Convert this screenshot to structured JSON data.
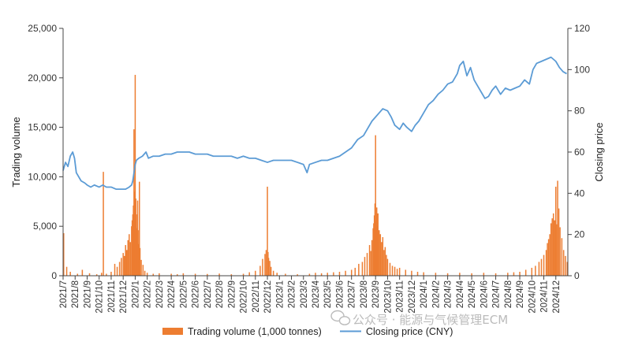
{
  "chart_data": {
    "type": "bar+line",
    "left_axis": {
      "title": "Trading volume",
      "ylim": [
        0,
        25000
      ],
      "ticks": [
        0,
        5000,
        10000,
        15000,
        20000,
        25000
      ],
      "tick_labels": [
        "0",
        "5,000",
        "10,000",
        "15,000",
        "20,000",
        "25,000"
      ]
    },
    "right_axis": {
      "title": "Closing price",
      "ylim": [
        0,
        120
      ],
      "ticks": [
        0,
        20,
        40,
        60,
        80,
        100,
        120
      ],
      "tick_labels": [
        "0",
        "20",
        "40",
        "60",
        "80",
        "100",
        "120"
      ]
    },
    "x_tick_labels": [
      "2021/7",
      "2021/8",
      "2021/9",
      "2021/10",
      "2021/11",
      "2021/12",
      "2022/1",
      "2022/2",
      "2022/3",
      "2022/4",
      "2022/5",
      "2022/6",
      "2022/7",
      "2022/8",
      "2022/9",
      "2022/10",
      "2022/11",
      "2022/12",
      "2023/1",
      "2023/2",
      "2023/3",
      "2023/4",
      "2023/5",
      "2023/6",
      "2023/7",
      "2023/8",
      "2023/9",
      "2023/10",
      "2023/11",
      "2023/12",
      "2024/1",
      "2024/2",
      "2024/3",
      "2024/4",
      "2024/5",
      "2024/6",
      "2024/7",
      "2024/8",
      "2024/9",
      "2024/10",
      "2024/11",
      "2024/12"
    ],
    "month_index_range": [
      0,
      42
    ],
    "series": [
      {
        "name": "Trading volume (1,000 tonnes)",
        "kind": "bar",
        "axis": "left",
        "color": "#ed7d31",
        "points": [
          [
            0.05,
            4300
          ],
          [
            0.3,
            900
          ],
          [
            0.6,
            400
          ],
          [
            1.2,
            200
          ],
          [
            1.6,
            600
          ],
          [
            2.2,
            250
          ],
          [
            2.8,
            150
          ],
          [
            3.2,
            300
          ],
          [
            3.35,
            10500
          ],
          [
            3.6,
            200
          ],
          [
            4.0,
            400
          ],
          [
            4.3,
            1200
          ],
          [
            4.5,
            900
          ],
          [
            4.7,
            1400
          ],
          [
            4.85,
            1800
          ],
          [
            5.0,
            2300
          ],
          [
            5.1,
            2000
          ],
          [
            5.2,
            3100
          ],
          [
            5.3,
            2600
          ],
          [
            5.4,
            3600
          ],
          [
            5.5,
            4200
          ],
          [
            5.6,
            3400
          ],
          [
            5.7,
            5000
          ],
          [
            5.75,
            5600
          ],
          [
            5.8,
            6200
          ],
          [
            5.85,
            7100
          ],
          [
            5.9,
            14800
          ],
          [
            5.95,
            8500
          ],
          [
            6.0,
            20300
          ],
          [
            6.05,
            7800
          ],
          [
            6.1,
            6200
          ],
          [
            6.15,
            4800
          ],
          [
            6.2,
            7600
          ],
          [
            6.25,
            3200
          ],
          [
            6.3,
            4600
          ],
          [
            6.35,
            9500
          ],
          [
            6.4,
            2800
          ],
          [
            6.5,
            1600
          ],
          [
            6.65,
            1100
          ],
          [
            6.8,
            500
          ],
          [
            7.0,
            300
          ],
          [
            7.5,
            200
          ],
          [
            8.0,
            250
          ],
          [
            9.0,
            200
          ],
          [
            9.5,
            150
          ],
          [
            10.0,
            250
          ],
          [
            11.0,
            200
          ],
          [
            12.0,
            180
          ],
          [
            13.0,
            220
          ],
          [
            14.0,
            150
          ],
          [
            15.0,
            200
          ],
          [
            15.5,
            350
          ],
          [
            16.0,
            500
          ],
          [
            16.4,
            1000
          ],
          [
            16.6,
            1700
          ],
          [
            16.8,
            2200
          ],
          [
            16.9,
            2600
          ],
          [
            17.0,
            9000
          ],
          [
            17.05,
            2400
          ],
          [
            17.1,
            1800
          ],
          [
            17.2,
            1500
          ],
          [
            17.3,
            900
          ],
          [
            17.5,
            500
          ],
          [
            17.8,
            300
          ],
          [
            18.5,
            200
          ],
          [
            19.5,
            150
          ],
          [
            20.5,
            200
          ],
          [
            21.0,
            300
          ],
          [
            21.5,
            250
          ],
          [
            22.0,
            300
          ],
          [
            22.5,
            350
          ],
          [
            23.0,
            400
          ],
          [
            23.5,
            500
          ],
          [
            24.0,
            600
          ],
          [
            24.3,
            800
          ],
          [
            24.6,
            1200
          ],
          [
            24.9,
            1400
          ],
          [
            25.1,
            1900
          ],
          [
            25.3,
            2300
          ],
          [
            25.5,
            3100
          ],
          [
            25.6,
            2500
          ],
          [
            25.7,
            3600
          ],
          [
            25.8,
            4800
          ],
          [
            25.85,
            5300
          ],
          [
            25.9,
            6100
          ],
          [
            25.95,
            7300
          ],
          [
            26.0,
            14200
          ],
          [
            26.05,
            5600
          ],
          [
            26.1,
            6900
          ],
          [
            26.15,
            5000
          ],
          [
            26.2,
            6300
          ],
          [
            26.3,
            4600
          ],
          [
            26.4,
            4200
          ],
          [
            26.5,
            3400
          ],
          [
            26.6,
            3900
          ],
          [
            26.7,
            2600
          ],
          [
            26.8,
            2900
          ],
          [
            26.9,
            2100
          ],
          [
            27.0,
            1700
          ],
          [
            27.2,
            1300
          ],
          [
            27.4,
            1000
          ],
          [
            27.6,
            900
          ],
          [
            27.8,
            700
          ],
          [
            28.0,
            800
          ],
          [
            28.5,
            600
          ],
          [
            29.0,
            500
          ],
          [
            29.5,
            400
          ],
          [
            30.0,
            350
          ],
          [
            31.0,
            300
          ],
          [
            32.0,
            250
          ],
          [
            33.0,
            300
          ],
          [
            34.0,
            250
          ],
          [
            35.0,
            300
          ],
          [
            36.0,
            250
          ],
          [
            37.0,
            300
          ],
          [
            37.5,
            350
          ],
          [
            38.0,
            400
          ],
          [
            38.5,
            600
          ],
          [
            39.0,
            800
          ],
          [
            39.3,
            1000
          ],
          [
            39.6,
            1400
          ],
          [
            39.8,
            1700
          ],
          [
            40.0,
            2100
          ],
          [
            40.2,
            2600
          ],
          [
            40.3,
            3300
          ],
          [
            40.4,
            3700
          ],
          [
            40.5,
            4200
          ],
          [
            40.6,
            5300
          ],
          [
            40.7,
            5800
          ],
          [
            40.8,
            6300
          ],
          [
            40.9,
            5600
          ],
          [
            41.0,
            9000
          ],
          [
            41.1,
            5200
          ],
          [
            41.15,
            9600
          ],
          [
            41.25,
            6800
          ],
          [
            41.35,
            4900
          ],
          [
            41.5,
            3800
          ],
          [
            41.65,
            2600
          ],
          [
            41.8,
            2000
          ],
          [
            41.95,
            1400
          ]
        ]
      },
      {
        "name": "Closing price (CNY)",
        "kind": "line",
        "axis": "right",
        "color": "#5b9bd5",
        "points": [
          [
            0.0,
            51
          ],
          [
            0.2,
            55
          ],
          [
            0.4,
            53
          ],
          [
            0.6,
            58
          ],
          [
            0.8,
            60
          ],
          [
            0.95,
            57
          ],
          [
            1.1,
            50
          ],
          [
            1.3,
            48
          ],
          [
            1.5,
            46
          ],
          [
            1.8,
            45
          ],
          [
            2.0,
            44
          ],
          [
            2.3,
            43
          ],
          [
            2.6,
            44
          ],
          [
            3.0,
            43
          ],
          [
            3.3,
            44
          ],
          [
            3.6,
            43
          ],
          [
            4.0,
            43
          ],
          [
            4.4,
            42
          ],
          [
            4.8,
            42
          ],
          [
            5.2,
            42
          ],
          [
            5.5,
            43
          ],
          [
            5.7,
            44
          ],
          [
            5.8,
            46
          ],
          [
            5.9,
            50
          ],
          [
            6.0,
            54
          ],
          [
            6.1,
            56
          ],
          [
            6.3,
            57
          ],
          [
            6.6,
            58
          ],
          [
            6.9,
            60
          ],
          [
            7.1,
            57
          ],
          [
            7.5,
            58
          ],
          [
            8.0,
            58
          ],
          [
            8.5,
            59
          ],
          [
            9.0,
            59
          ],
          [
            9.5,
            60
          ],
          [
            10.0,
            60
          ],
          [
            10.5,
            60
          ],
          [
            11.0,
            59
          ],
          [
            11.5,
            59
          ],
          [
            12.0,
            59
          ],
          [
            12.5,
            58
          ],
          [
            13.0,
            58
          ],
          [
            13.5,
            58
          ],
          [
            14.0,
            58
          ],
          [
            14.5,
            57
          ],
          [
            15.0,
            58
          ],
          [
            15.5,
            57
          ],
          [
            16.0,
            57
          ],
          [
            16.5,
            56
          ],
          [
            17.0,
            55
          ],
          [
            17.5,
            56
          ],
          [
            18.0,
            56
          ],
          [
            18.5,
            56
          ],
          [
            19.0,
            56
          ],
          [
            19.5,
            55
          ],
          [
            20.0,
            54
          ],
          [
            20.3,
            50
          ],
          [
            20.5,
            54
          ],
          [
            21.0,
            55
          ],
          [
            21.5,
            56
          ],
          [
            22.0,
            56
          ],
          [
            22.5,
            57
          ],
          [
            23.0,
            58
          ],
          [
            23.5,
            60
          ],
          [
            24.0,
            62
          ],
          [
            24.5,
            66
          ],
          [
            25.0,
            68
          ],
          [
            25.4,
            72
          ],
          [
            25.7,
            75
          ],
          [
            26.0,
            77
          ],
          [
            26.3,
            79
          ],
          [
            26.6,
            81
          ],
          [
            27.0,
            80
          ],
          [
            27.3,
            77
          ],
          [
            27.6,
            73
          ],
          [
            28.0,
            71
          ],
          [
            28.3,
            74
          ],
          [
            28.6,
            72
          ],
          [
            29.0,
            70
          ],
          [
            29.3,
            73
          ],
          [
            29.6,
            75
          ],
          [
            30.0,
            79
          ],
          [
            30.4,
            83
          ],
          [
            30.8,
            85
          ],
          [
            31.2,
            88
          ],
          [
            31.6,
            90
          ],
          [
            32.0,
            93
          ],
          [
            32.4,
            94
          ],
          [
            32.8,
            98
          ],
          [
            33.0,
            102
          ],
          [
            33.3,
            104
          ],
          [
            33.6,
            97
          ],
          [
            33.9,
            101
          ],
          [
            34.2,
            95
          ],
          [
            34.5,
            92
          ],
          [
            34.8,
            89
          ],
          [
            35.1,
            86
          ],
          [
            35.4,
            87
          ],
          [
            35.7,
            90
          ],
          [
            36.0,
            92
          ],
          [
            36.4,
            88
          ],
          [
            36.8,
            91
          ],
          [
            37.2,
            90
          ],
          [
            37.6,
            91
          ],
          [
            38.0,
            92
          ],
          [
            38.4,
            95
          ],
          [
            38.8,
            93
          ],
          [
            39.1,
            100
          ],
          [
            39.4,
            103
          ],
          [
            39.8,
            104
          ],
          [
            40.2,
            105
          ],
          [
            40.6,
            106
          ],
          [
            41.0,
            104
          ],
          [
            41.3,
            101
          ],
          [
            41.6,
            99
          ],
          [
            41.9,
            98
          ]
        ]
      }
    ],
    "legend": {
      "position": "bottom-center",
      "entries": [
        "Trading volume (1,000 tonnes)",
        "Closing price (CNY)"
      ]
    }
  },
  "watermark": "公众号 · 能源与气候管理ECM"
}
